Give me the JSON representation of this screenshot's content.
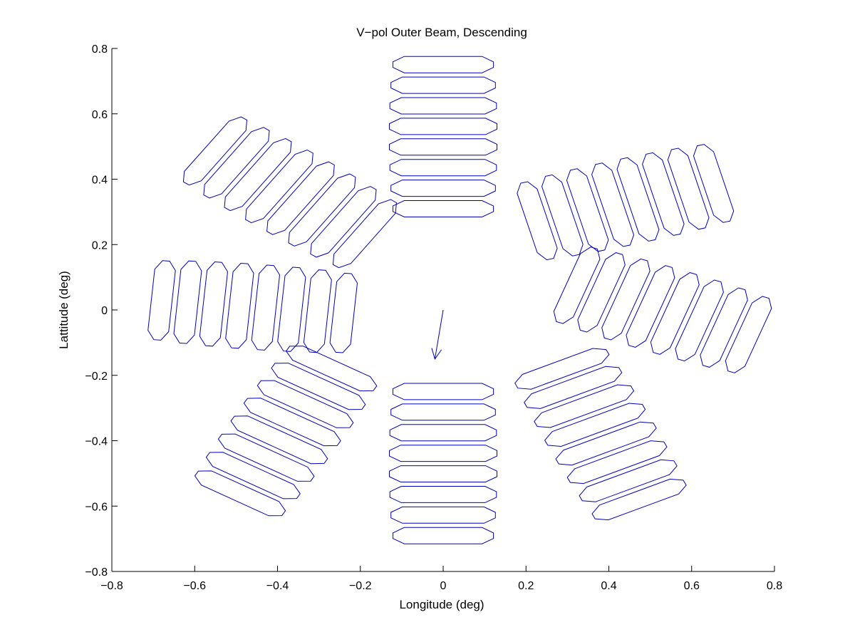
{
  "chart_data": {
    "type": "scatter",
    "title": "V−pol Outer Beam, Descending",
    "xlabel": "Longitude (deg)",
    "ylabel": "Lattitude (deg)",
    "xlim": [
      -0.8,
      0.8
    ],
    "ylim": [
      -0.8,
      0.8
    ],
    "x_ticks": [
      -0.8,
      -0.6,
      -0.4,
      -0.2,
      0,
      0.2,
      0.4,
      0.6,
      0.8
    ],
    "y_ticks": [
      -0.8,
      -0.6,
      -0.4,
      -0.2,
      0,
      0.2,
      0.4,
      0.6,
      0.8
    ],
    "x_tick_labels": [
      "−0.8",
      "−0.6",
      "−0.4",
      "−0.2",
      "0",
      "0.2",
      "0.4",
      "0.6",
      "0.8"
    ],
    "y_tick_labels": [
      "−0.8",
      "−0.6",
      "−0.4",
      "−0.2",
      "0",
      "0.2",
      "0.4",
      "0.6",
      "0.8"
    ],
    "grid": false,
    "line_color": "#0000c0",
    "arrow": {
      "from": [
        0.0,
        0.0
      ],
      "to": [
        -0.02,
        -0.15
      ]
    },
    "footprint_clusters": [
      {
        "center": [
          0.0,
          0.53
        ],
        "n": 8,
        "axis_angle_deg": 90,
        "row_spacing": 0.063,
        "length": 0.26,
        "width": 0.05
      },
      {
        "center": [
          0.44,
          0.33
        ],
        "n": 8,
        "axis_angle_deg": 15,
        "row_spacing": 0.063,
        "length": 0.26,
        "width": 0.05
      },
      {
        "center": [
          0.53,
          0.0
        ],
        "n": 8,
        "axis_angle_deg": -20,
        "row_spacing": 0.063,
        "length": 0.26,
        "width": 0.05
      },
      {
        "center": [
          0.38,
          -0.38
        ],
        "n": 8,
        "axis_angle_deg": -65,
        "row_spacing": 0.063,
        "length": 0.26,
        "width": 0.05
      },
      {
        "center": [
          0.0,
          -0.47
        ],
        "n": 8,
        "axis_angle_deg": -90,
        "row_spacing": 0.063,
        "length": 0.26,
        "width": 0.05
      },
      {
        "center": [
          -0.38,
          -0.37
        ],
        "n": 8,
        "axis_angle_deg": -120,
        "row_spacing": 0.063,
        "length": 0.26,
        "width": 0.05
      },
      {
        "center": [
          -0.46,
          0.01
        ],
        "n": 8,
        "axis_angle_deg": 175,
        "row_spacing": 0.063,
        "length": 0.26,
        "width": 0.05
      },
      {
        "center": [
          -0.37,
          0.36
        ],
        "n": 8,
        "axis_angle_deg": 145,
        "row_spacing": 0.063,
        "length": 0.26,
        "width": 0.05
      }
    ]
  }
}
